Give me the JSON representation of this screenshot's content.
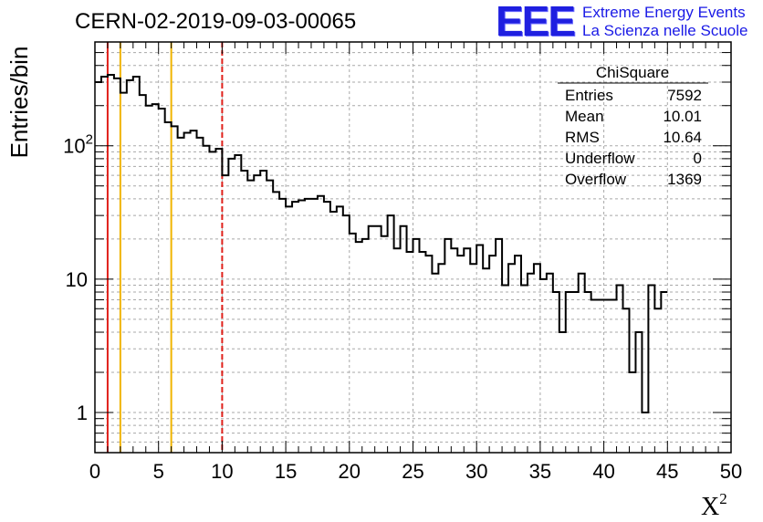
{
  "title": "CERN-02-2019-09-03-00065",
  "logo": {
    "mark": "EEE",
    "line1": "Extreme Energy Events",
    "line2": "La Scienza nelle Scuole",
    "color": "#1a1ae6"
  },
  "stats_box": {
    "title": "ChiSquare",
    "rows": [
      {
        "label": "Entries",
        "value": "7592"
      },
      {
        "label": "Mean",
        "value": "10.01"
      },
      {
        "label": "RMS",
        "value": "10.64"
      },
      {
        "label": "Underflow",
        "value": "0"
      },
      {
        "label": "Overflow",
        "value": "1369"
      }
    ]
  },
  "chart_data": {
    "type": "histogram",
    "title": "CERN-02-2019-09-03-00065",
    "xlabel": "X",
    "xlabel_superscript": "2",
    "ylabel": "Entries/bin",
    "xlim": [
      0,
      50
    ],
    "ylim": [
      0.5,
      600
    ],
    "y_scale": "log",
    "grid": true,
    "bin_width": 0.5,
    "x_ticks": [
      "0",
      "5",
      "10",
      "15",
      "20",
      "25",
      "30",
      "35",
      "40",
      "45",
      "50"
    ],
    "y_ticks": [
      {
        "value": 1,
        "label": "1"
      },
      {
        "value": 10,
        "label": "10"
      },
      {
        "value": 100,
        "label": "10",
        "exponent": "2"
      }
    ],
    "values": [
      300,
      330,
      340,
      320,
      250,
      310,
      330,
      240,
      200,
      205,
      190,
      150,
      140,
      115,
      125,
      130,
      115,
      100,
      90,
      95,
      60,
      80,
      85,
      65,
      55,
      60,
      65,
      55,
      45,
      40,
      35,
      38,
      39,
      40,
      40,
      42,
      38,
      32,
      35,
      30,
      22,
      19,
      20,
      25,
      25,
      21,
      30,
      17,
      25,
      16,
      20,
      16,
      15,
      11,
      13,
      20,
      17,
      15,
      17,
      13,
      18,
      12,
      15,
      20,
      9,
      13,
      15,
      9,
      11,
      13,
      10,
      11,
      8,
      4,
      8,
      8,
      11,
      8,
      7,
      7,
      7,
      7,
      9,
      6,
      2,
      4,
      1,
      9,
      6,
      8
    ],
    "vlines": [
      {
        "x": 1,
        "color": "#e0201a",
        "style": "solid"
      },
      {
        "x": 2,
        "color": "#f0b400",
        "style": "solid"
      },
      {
        "x": 6,
        "color": "#f0b400",
        "style": "solid"
      },
      {
        "x": 10,
        "color": "#e0201a",
        "style": "dashed"
      }
    ]
  }
}
